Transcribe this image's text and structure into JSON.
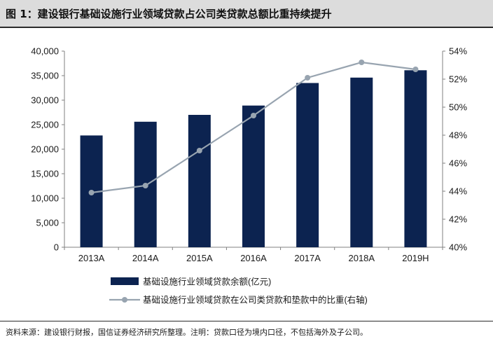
{
  "figure": {
    "title": "图 1：建设银行基础设施行业领域贷款占公司类贷款总额比重持续提升",
    "footnote": "资料来源：建设银行财报，国信证券经济研究所整理。注明：贷款口径为境内口径，不包括海外及子公司。"
  },
  "colors": {
    "bar": "#0c2350",
    "line": "#98a4b0",
    "axis": "#808080"
  },
  "chart_data": {
    "type": "bar",
    "categories": [
      "2013A",
      "2014A",
      "2015A",
      "2016A",
      "2017A",
      "2018A",
      "2019H"
    ],
    "series": [
      {
        "name": "基础设施行业领域贷款余额(亿元)",
        "type": "bar",
        "axis": "left",
        "values": [
          22800,
          25600,
          27000,
          28900,
          33500,
          34600,
          36100
        ]
      },
      {
        "name": "基础设施行业领域贷款在公司类贷款和垫款中的比重(右轴)",
        "type": "line",
        "axis": "right",
        "values": [
          43.9,
          44.4,
          46.9,
          49.4,
          52.1,
          53.2,
          52.7
        ]
      }
    ],
    "y_left": {
      "lim": [
        0,
        40000
      ],
      "ticks": [
        "0",
        "5,000",
        "10,000",
        "15,000",
        "20,000",
        "25,000",
        "30,000",
        "35,000",
        "40,000"
      ]
    },
    "y_right": {
      "lim": [
        40,
        54
      ],
      "ticks": [
        "40%",
        "42%",
        "44%",
        "46%",
        "48%",
        "50%",
        "52%",
        "54%"
      ]
    },
    "legend_position": "bottom",
    "grid": false
  }
}
